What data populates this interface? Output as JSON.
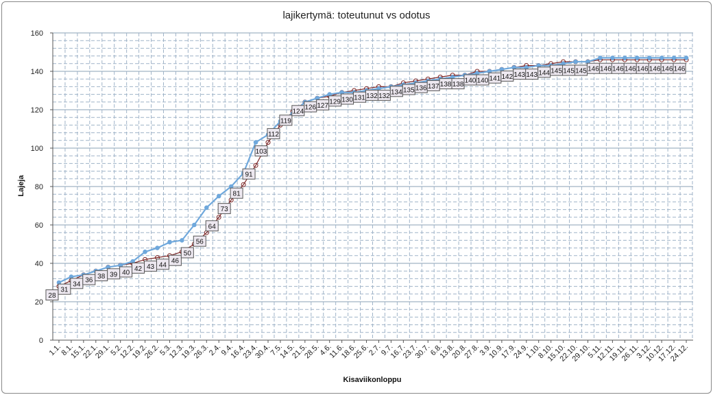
{
  "chart_data": {
    "type": "line",
    "title": "lajikertymä: toteutunut  vs odotus",
    "xlabel": "Kisaviikonloppu",
    "ylabel": "Lajeja",
    "ylim": [
      0,
      160
    ],
    "yticks": [
      0,
      20,
      40,
      60,
      80,
      100,
      120,
      140,
      160
    ],
    "grid": true,
    "categories": [
      "1.1.",
      "8.1.",
      "15.1.",
      "22.1.",
      "29.1.",
      "5.2.",
      "12.2.",
      "19.2.",
      "26.2.",
      "5.3.",
      "12.3.",
      "19.3.",
      "26.3.",
      "2.4.",
      "9.4.",
      "16.4.",
      "23.4.",
      "30.4.",
      "7.5.",
      "14.5.",
      "21.5.",
      "28.5.",
      "4.6.",
      "11.6.",
      "18.6.",
      "25.6.",
      "2.7.",
      "9.7.",
      "16.7.",
      "23.7.",
      "30.7.",
      "6.8.",
      "13.8.",
      "20.8.",
      "27.8.",
      "3.9.",
      "10.9.",
      "17.9.",
      "24.9.",
      "1.10.",
      "8.10.",
      "15.10.",
      "22.10.",
      "29.10.",
      "5.11.",
      "12.11.",
      "19.11.",
      "26.11.",
      "3.12.",
      "10.12.",
      "17.12.",
      "24.12."
    ],
    "series": [
      {
        "name": "",
        "role": "odotus",
        "color": "#7a2222",
        "marker": "open-circle",
        "labeled": true,
        "values": [
          28,
          31,
          34,
          36,
          38,
          39,
          40,
          42,
          43,
          44,
          46,
          50,
          56,
          64,
          73,
          81,
          91,
          103,
          112,
          119,
          124,
          126,
          127,
          129,
          130,
          131,
          132,
          132,
          134,
          135,
          136,
          137,
          138,
          138,
          140,
          140,
          141,
          142,
          143,
          143,
          144,
          145,
          145,
          145,
          146,
          146,
          146,
          146,
          146,
          146,
          146,
          146
        ]
      },
      {
        "name": "",
        "role": "toteutunut",
        "color": "#6fa8dc",
        "marker": "circle",
        "labeled": false,
        "values": [
          30,
          33,
          34,
          36,
          38,
          39,
          41,
          46,
          48,
          51,
          52,
          60,
          69,
          75,
          80,
          87,
          103,
          107,
          114,
          118,
          124,
          126,
          128,
          129,
          129,
          130,
          131,
          132,
          133,
          134,
          135,
          136,
          137,
          138,
          139,
          140,
          141,
          142,
          142,
          143,
          143,
          144,
          145,
          145,
          147,
          147,
          147,
          147,
          147,
          147,
          147,
          147
        ]
      }
    ]
  }
}
